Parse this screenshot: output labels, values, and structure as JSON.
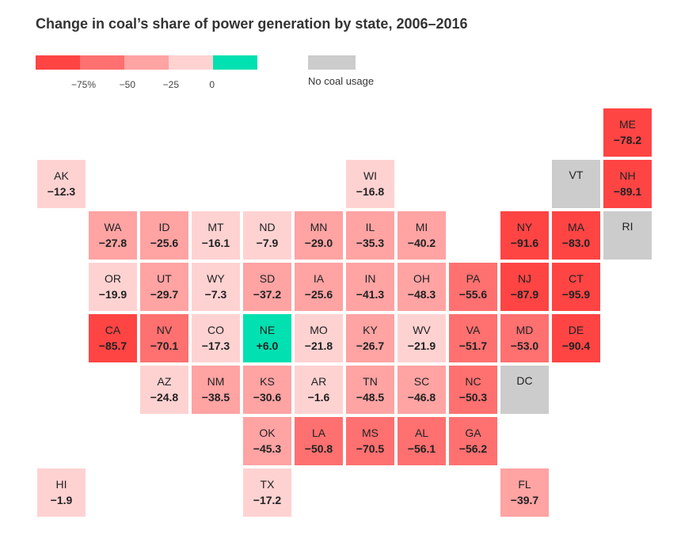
{
  "chart_data": {
    "type": "tile-map",
    "title": "Change in coal’s share of power generation by state, 2006–2016",
    "legend": {
      "colors": [
        "#ff4444",
        "#ff7070",
        "#ffa3a3",
        "#ffd2d2",
        "#00e0b0"
      ],
      "ticks": [
        "−75%",
        "−50",
        "−25",
        "0"
      ],
      "no_coal_label": "No coal usage",
      "no_coal_color": "#cccccc"
    },
    "states": [
      {
        "abbr": "ME",
        "value": "−78.2",
        "num": -78.2,
        "col": 11,
        "row": 0
      },
      {
        "abbr": "AK",
        "value": "−12.3",
        "num": -12.3,
        "col": 0,
        "row": 1
      },
      {
        "abbr": "WI",
        "value": "−16.8",
        "num": -16.8,
        "col": 6,
        "row": 1
      },
      {
        "abbr": "VT",
        "value": "",
        "num": null,
        "col": 10,
        "row": 1
      },
      {
        "abbr": "NH",
        "value": "−89.1",
        "num": -89.1,
        "col": 11,
        "row": 1
      },
      {
        "abbr": "WA",
        "value": "−27.8",
        "num": -27.8,
        "col": 1,
        "row": 2
      },
      {
        "abbr": "ID",
        "value": "−25.6",
        "num": -25.6,
        "col": 2,
        "row": 2
      },
      {
        "abbr": "MT",
        "value": "−16.1",
        "num": -16.1,
        "col": 3,
        "row": 2
      },
      {
        "abbr": "ND",
        "value": "−7.9",
        "num": -7.9,
        "col": 4,
        "row": 2
      },
      {
        "abbr": "MN",
        "value": "−29.0",
        "num": -29.0,
        "col": 5,
        "row": 2
      },
      {
        "abbr": "IL",
        "value": "−35.3",
        "num": -35.3,
        "col": 6,
        "row": 2
      },
      {
        "abbr": "MI",
        "value": "−40.2",
        "num": -40.2,
        "col": 7,
        "row": 2
      },
      {
        "abbr": "NY",
        "value": "−91.6",
        "num": -91.6,
        "col": 9,
        "row": 2
      },
      {
        "abbr": "MA",
        "value": "−83.0",
        "num": -83.0,
        "col": 10,
        "row": 2
      },
      {
        "abbr": "RI",
        "value": "",
        "num": null,
        "col": 11,
        "row": 2
      },
      {
        "abbr": "OR",
        "value": "−19.9",
        "num": -19.9,
        "col": 1,
        "row": 3
      },
      {
        "abbr": "UT",
        "value": "−29.7",
        "num": -29.7,
        "col": 2,
        "row": 3
      },
      {
        "abbr": "WY",
        "value": "−7.3",
        "num": -7.3,
        "col": 3,
        "row": 3
      },
      {
        "abbr": "SD",
        "value": "−37.2",
        "num": -37.2,
        "col": 4,
        "row": 3
      },
      {
        "abbr": "IA",
        "value": "−25.6",
        "num": -25.6,
        "col": 5,
        "row": 3
      },
      {
        "abbr": "IN",
        "value": "−41.3",
        "num": -41.3,
        "col": 6,
        "row": 3
      },
      {
        "abbr": "OH",
        "value": "−48.3",
        "num": -48.3,
        "col": 7,
        "row": 3
      },
      {
        "abbr": "PA",
        "value": "−55.6",
        "num": -55.6,
        "col": 8,
        "row": 3
      },
      {
        "abbr": "NJ",
        "value": "−87.9",
        "num": -87.9,
        "col": 9,
        "row": 3
      },
      {
        "abbr": "CT",
        "value": "−95.9",
        "num": -95.9,
        "col": 10,
        "row": 3
      },
      {
        "abbr": "CA",
        "value": "−85.7",
        "num": -85.7,
        "col": 1,
        "row": 4
      },
      {
        "abbr": "NV",
        "value": "−70.1",
        "num": -70.1,
        "col": 2,
        "row": 4
      },
      {
        "abbr": "CO",
        "value": "−17.3",
        "num": -17.3,
        "col": 3,
        "row": 4
      },
      {
        "abbr": "NE",
        "value": "+6.0",
        "num": 6.0,
        "col": 4,
        "row": 4
      },
      {
        "abbr": "MO",
        "value": "−21.8",
        "num": -21.8,
        "col": 5,
        "row": 4
      },
      {
        "abbr": "KY",
        "value": "−26.7",
        "num": -26.7,
        "col": 6,
        "row": 4
      },
      {
        "abbr": "WV",
        "value": "−21.9",
        "num": -21.9,
        "col": 7,
        "row": 4
      },
      {
        "abbr": "VA",
        "value": "−51.7",
        "num": -51.7,
        "col": 8,
        "row": 4
      },
      {
        "abbr": "MD",
        "value": "−53.0",
        "num": -53.0,
        "col": 9,
        "row": 4
      },
      {
        "abbr": "DE",
        "value": "−90.4",
        "num": -90.4,
        "col": 10,
        "row": 4
      },
      {
        "abbr": "AZ",
        "value": "−24.8",
        "num": -24.8,
        "col": 2,
        "row": 5
      },
      {
        "abbr": "NM",
        "value": "−38.5",
        "num": -38.5,
        "col": 3,
        "row": 5
      },
      {
        "abbr": "KS",
        "value": "−30.6",
        "num": -30.6,
        "col": 4,
        "row": 5
      },
      {
        "abbr": "AR",
        "value": "−1.6",
        "num": -1.6,
        "col": 5,
        "row": 5
      },
      {
        "abbr": "TN",
        "value": "−48.5",
        "num": -48.5,
        "col": 6,
        "row": 5
      },
      {
        "abbr": "SC",
        "value": "−46.8",
        "num": -46.8,
        "col": 7,
        "row": 5
      },
      {
        "abbr": "NC",
        "value": "−50.3",
        "num": -50.3,
        "col": 8,
        "row": 5
      },
      {
        "abbr": "DC",
        "value": "",
        "num": null,
        "col": 9,
        "row": 5
      },
      {
        "abbr": "OK",
        "value": "−45.3",
        "num": -45.3,
        "col": 4,
        "row": 6
      },
      {
        "abbr": "LA",
        "value": "−50.8",
        "num": -50.8,
        "col": 5,
        "row": 6
      },
      {
        "abbr": "MS",
        "value": "−70.5",
        "num": -70.5,
        "col": 6,
        "row": 6
      },
      {
        "abbr": "AL",
        "value": "−56.1",
        "num": -56.1,
        "col": 7,
        "row": 6
      },
      {
        "abbr": "GA",
        "value": "−56.2",
        "num": -56.2,
        "col": 8,
        "row": 6
      },
      {
        "abbr": "HI",
        "value": "−1.9",
        "num": -1.9,
        "col": 0,
        "row": 7
      },
      {
        "abbr": "TX",
        "value": "−17.2",
        "num": -17.2,
        "col": 4,
        "row": 7
      },
      {
        "abbr": "FL",
        "value": "−39.7",
        "num": -39.7,
        "col": 9,
        "row": 7
      }
    ]
  }
}
